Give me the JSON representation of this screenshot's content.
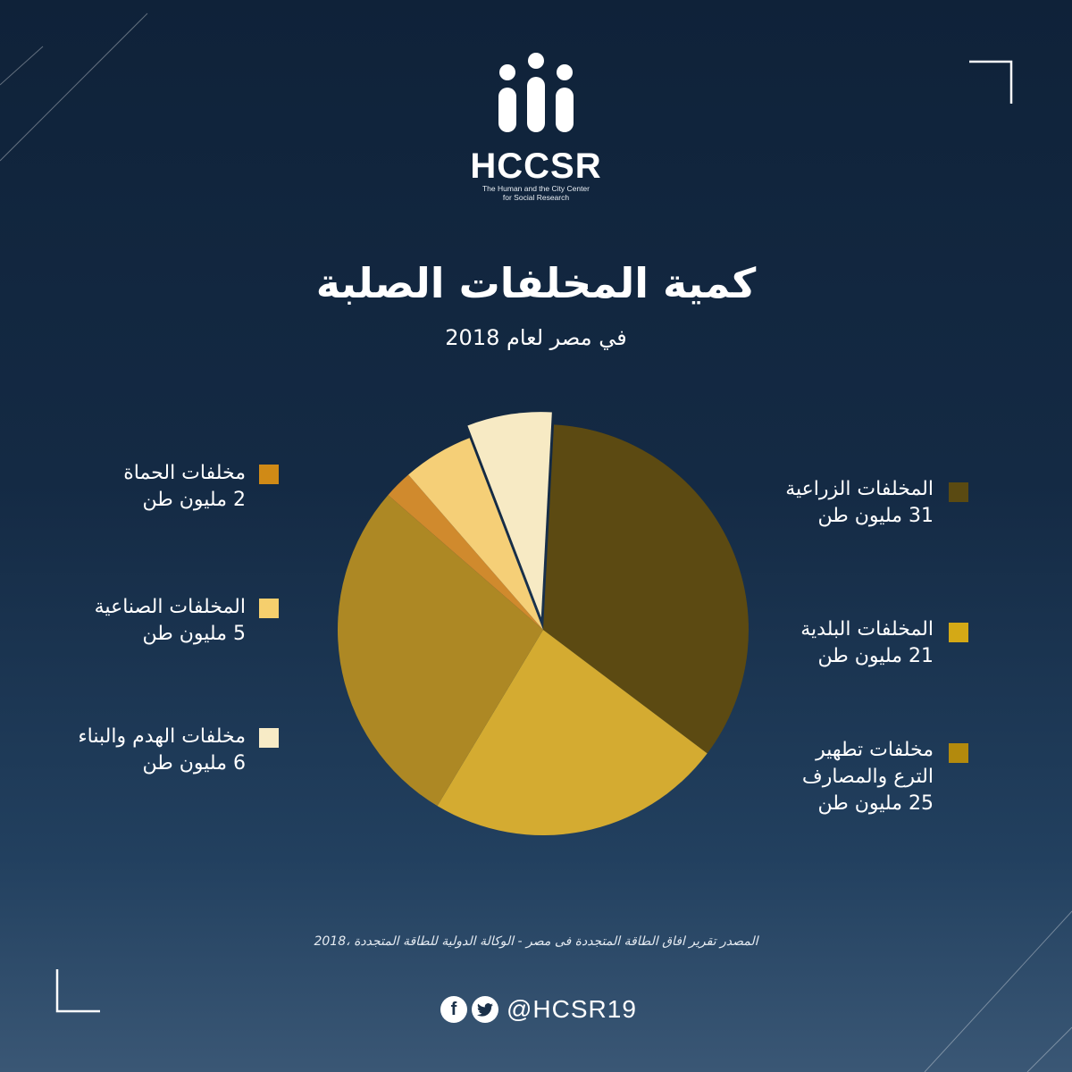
{
  "logo": {
    "name": "HCCSR",
    "sub_line1": "The Human and the City Center",
    "sub_line2": "for Social Research"
  },
  "title": "كمية المخلفات الصلبة",
  "subtitle": "في مصر لعام 2018",
  "chart_data": {
    "type": "pie",
    "unit": "مليون طن",
    "slices": [
      {
        "label": "المخلفات الزراعية",
        "value": 31,
        "value_label": "31 مليون طن",
        "color": "#5c4a12"
      },
      {
        "label": "المخلفات البلدية",
        "value": 21,
        "value_label": "21 مليون طن",
        "color": "#d4ab31"
      },
      {
        "label": "مخلفات تطهير الترع والمصارف",
        "label_line1": "مخلفات تطهير",
        "label_line2": "الترع والمصارف",
        "value": 25,
        "value_label": "25 مليون طن",
        "color": "#ad8824"
      },
      {
        "label": "مخلفات الحماة",
        "value": 2,
        "value_label": "2 مليون طن",
        "color": "#d08a2d"
      },
      {
        "label": "المخلفات الصناعية",
        "value": 5,
        "value_label": "5 مليون طن",
        "color": "#f5cf77"
      },
      {
        "label": "مخلفات الهدم والبناء",
        "value": 6,
        "value_label": "6 مليون طن",
        "color": "#f7eac4"
      }
    ],
    "legend_swatch_colors": [
      "#5a4a12",
      "#d4a916",
      "#b38a0d",
      "#d08a16",
      "#f6cf6d",
      "#f7ebc6"
    ]
  },
  "source": "المصدر تقرير افاق الطاقة المتجددة فى مصر - الوكالة الدولية للطاقة المتجددة ،2018",
  "social": {
    "facebook_icon": "facebook-icon",
    "twitter_icon": "twitter-icon",
    "handle": "@HCSR19"
  }
}
